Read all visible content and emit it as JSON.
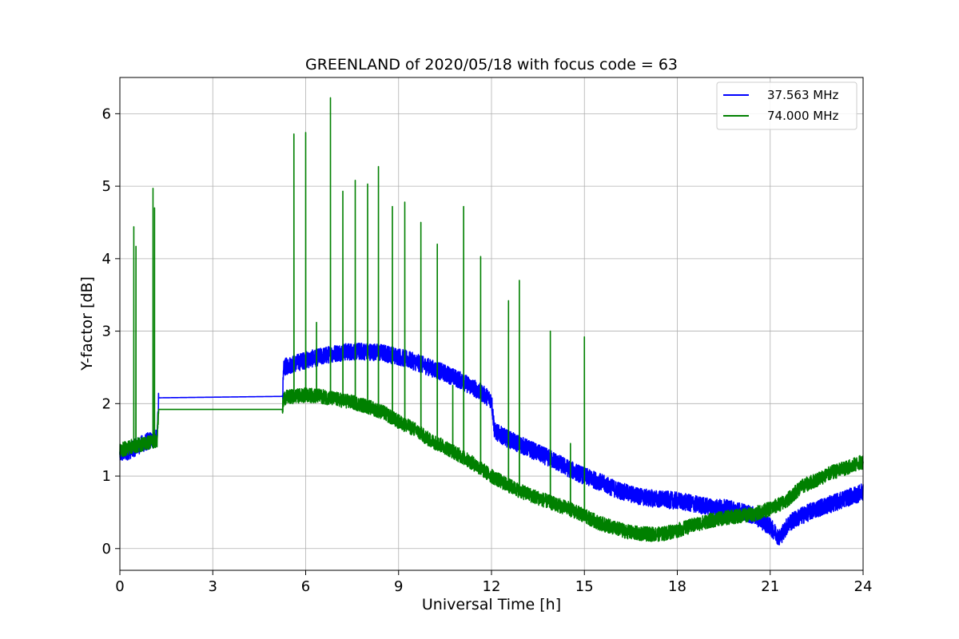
{
  "chart_data": {
    "type": "line",
    "title": "GREENLAND of 2020/05/18 with focus code = 63",
    "xlabel": "Universal Time [h]",
    "ylabel": "Y-factor [dB]",
    "xlim": [
      0,
      24
    ],
    "ylim": [
      -0.3,
      6.5
    ],
    "xticks": [
      0,
      3,
      6,
      9,
      12,
      15,
      18,
      21,
      24
    ],
    "yticks": [
      0,
      1,
      2,
      3,
      4,
      5,
      6
    ],
    "grid": true,
    "legend_position": "top-right",
    "series": [
      {
        "name": "37.563 MHz",
        "color": "#0000ff",
        "noise": 0.12,
        "baseline": [
          [
            0.0,
            1.3
          ],
          [
            0.3,
            1.35
          ],
          [
            0.6,
            1.42
          ],
          [
            0.9,
            1.48
          ],
          [
            1.2,
            1.52
          ],
          [
            1.25,
            2.08
          ],
          [
            5.25,
            2.1
          ],
          [
            5.3,
            2.5
          ],
          [
            5.6,
            2.55
          ],
          [
            6.0,
            2.6
          ],
          [
            6.5,
            2.65
          ],
          [
            7.0,
            2.7
          ],
          [
            7.5,
            2.72
          ],
          [
            8.0,
            2.72
          ],
          [
            8.5,
            2.7
          ],
          [
            9.0,
            2.65
          ],
          [
            9.5,
            2.58
          ],
          [
            10.0,
            2.5
          ],
          [
            10.5,
            2.42
          ],
          [
            11.0,
            2.32
          ],
          [
            11.5,
            2.2
          ],
          [
            12.0,
            2.05
          ],
          [
            12.1,
            1.62
          ],
          [
            12.5,
            1.52
          ],
          [
            13.0,
            1.42
          ],
          [
            13.5,
            1.32
          ],
          [
            14.0,
            1.22
          ],
          [
            14.5,
            1.1
          ],
          [
            15.0,
            1.0
          ],
          [
            15.5,
            0.92
          ],
          [
            16.0,
            0.82
          ],
          [
            16.5,
            0.75
          ],
          [
            17.0,
            0.7
          ],
          [
            17.5,
            0.68
          ],
          [
            18.0,
            0.66
          ],
          [
            18.5,
            0.62
          ],
          [
            19.0,
            0.58
          ],
          [
            19.5,
            0.56
          ],
          [
            20.0,
            0.52
          ],
          [
            20.5,
            0.45
          ],
          [
            21.0,
            0.3
          ],
          [
            21.3,
            0.15
          ],
          [
            21.6,
            0.35
          ],
          [
            22.0,
            0.45
          ],
          [
            22.5,
            0.55
          ],
          [
            23.0,
            0.62
          ],
          [
            23.5,
            0.7
          ],
          [
            24.0,
            0.78
          ]
        ],
        "spikes": []
      },
      {
        "name": "74.000 MHz",
        "color": "#008000",
        "noise": 0.1,
        "baseline": [
          [
            0.0,
            1.35
          ],
          [
            0.3,
            1.4
          ],
          [
            0.6,
            1.43
          ],
          [
            0.9,
            1.46
          ],
          [
            1.2,
            1.5
          ],
          [
            1.25,
            1.92
          ],
          [
            5.25,
            1.92
          ],
          [
            5.3,
            2.08
          ],
          [
            5.6,
            2.1
          ],
          [
            6.0,
            2.12
          ],
          [
            6.5,
            2.1
          ],
          [
            7.0,
            2.06
          ],
          [
            7.5,
            2.02
          ],
          [
            8.0,
            1.96
          ],
          [
            8.5,
            1.88
          ],
          [
            9.0,
            1.75
          ],
          [
            9.5,
            1.65
          ],
          [
            10.0,
            1.5
          ],
          [
            10.5,
            1.4
          ],
          [
            11.0,
            1.28
          ],
          [
            11.5,
            1.15
          ],
          [
            12.0,
            1.0
          ],
          [
            12.5,
            0.88
          ],
          [
            13.0,
            0.78
          ],
          [
            13.5,
            0.7
          ],
          [
            14.0,
            0.62
          ],
          [
            14.5,
            0.55
          ],
          [
            15.0,
            0.45
          ],
          [
            15.5,
            0.35
          ],
          [
            16.0,
            0.28
          ],
          [
            16.5,
            0.22
          ],
          [
            17.0,
            0.2
          ],
          [
            17.5,
            0.2
          ],
          [
            18.0,
            0.25
          ],
          [
            18.5,
            0.32
          ],
          [
            19.0,
            0.38
          ],
          [
            19.5,
            0.42
          ],
          [
            20.0,
            0.45
          ],
          [
            20.5,
            0.48
          ],
          [
            21.0,
            0.55
          ],
          [
            21.5,
            0.65
          ],
          [
            22.0,
            0.85
          ],
          [
            22.5,
            0.95
          ],
          [
            23.0,
            1.05
          ],
          [
            23.5,
            1.12
          ],
          [
            24.0,
            1.2
          ]
        ],
        "spikes": [
          [
            0.45,
            4.44
          ],
          [
            0.52,
            4.17
          ],
          [
            1.07,
            4.97
          ],
          [
            1.12,
            4.7
          ],
          [
            5.62,
            5.72
          ],
          [
            6.0,
            5.74
          ],
          [
            6.35,
            3.12
          ],
          [
            6.8,
            6.22
          ],
          [
            7.2,
            4.93
          ],
          [
            7.6,
            5.08
          ],
          [
            8.0,
            5.03
          ],
          [
            8.35,
            5.27
          ],
          [
            8.8,
            4.72
          ],
          [
            9.2,
            4.78
          ],
          [
            9.72,
            4.5
          ],
          [
            10.25,
            4.2
          ],
          [
            10.75,
            2.25
          ],
          [
            11.1,
            4.72
          ],
          [
            11.65,
            4.03
          ],
          [
            12.55,
            3.42
          ],
          [
            12.9,
            3.7
          ],
          [
            13.9,
            3.0
          ],
          [
            14.55,
            1.45
          ],
          [
            15.0,
            2.92
          ]
        ]
      }
    ]
  }
}
